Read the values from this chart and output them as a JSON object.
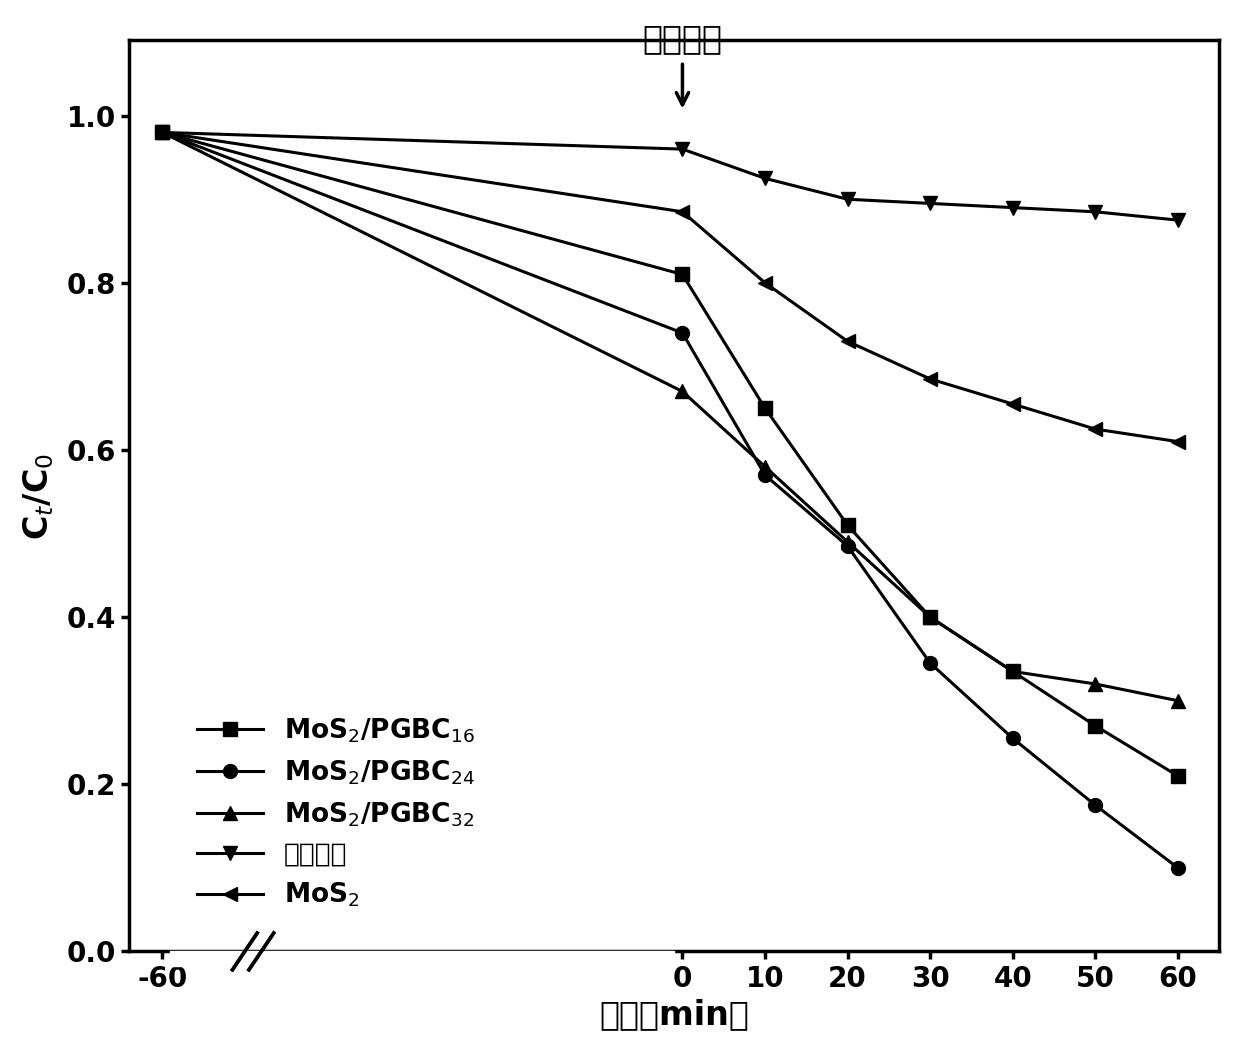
{
  "title_annotation": "开始光照",
  "xlabel": "时间（min）",
  "ylabel": "C$_t$/C$_0$",
  "ylim": [
    0.0,
    1.09
  ],
  "yticks": [
    0.0,
    0.2,
    0.4,
    0.6,
    0.8,
    1.0
  ],
  "series": {
    "MoS2_PGBC16": {
      "label": "MoS$_2$/PGBC$_{16}$",
      "marker": "s",
      "x": [
        -60,
        0,
        10,
        20,
        30,
        40,
        50,
        60
      ],
      "y": [
        0.98,
        0.81,
        0.65,
        0.51,
        0.4,
        0.335,
        0.27,
        0.21
      ]
    },
    "MoS2_PGBC24": {
      "label": "MoS$_2$/PGBC$_{24}$",
      "marker": "o",
      "x": [
        -60,
        0,
        10,
        20,
        30,
        40,
        50,
        60
      ],
      "y": [
        0.98,
        0.74,
        0.57,
        0.485,
        0.345,
        0.255,
        0.175,
        0.1
      ]
    },
    "MoS2_PGBC32": {
      "label": "MoS$_2$/PGBC$_{32}$",
      "marker": "^",
      "x": [
        -60,
        0,
        10,
        20,
        30,
        40,
        50,
        60
      ],
      "y": [
        0.98,
        0.67,
        0.58,
        0.49,
        0.4,
        0.335,
        0.32,
        0.3
      ]
    },
    "blank": {
      "label": "空白实验",
      "marker": "v",
      "x": [
        -60,
        0,
        10,
        20,
        30,
        40,
        50,
        60
      ],
      "y": [
        0.98,
        0.96,
        0.925,
        0.9,
        0.895,
        0.89,
        0.885,
        0.875
      ]
    },
    "MoS2": {
      "label": "MoS$_2$",
      "marker": "<",
      "x": [
        -60,
        0,
        10,
        20,
        30,
        40,
        50,
        60
      ],
      "y": [
        0.98,
        0.885,
        0.8,
        0.73,
        0.685,
        0.655,
        0.625,
        0.61
      ]
    }
  },
  "line_color": "#000000",
  "background_color": "#ffffff",
  "fontsize_label": 24,
  "fontsize_tick": 20,
  "fontsize_annotation": 24,
  "fontsize_legend": 19,
  "linewidth": 2.2,
  "markersize": 10
}
